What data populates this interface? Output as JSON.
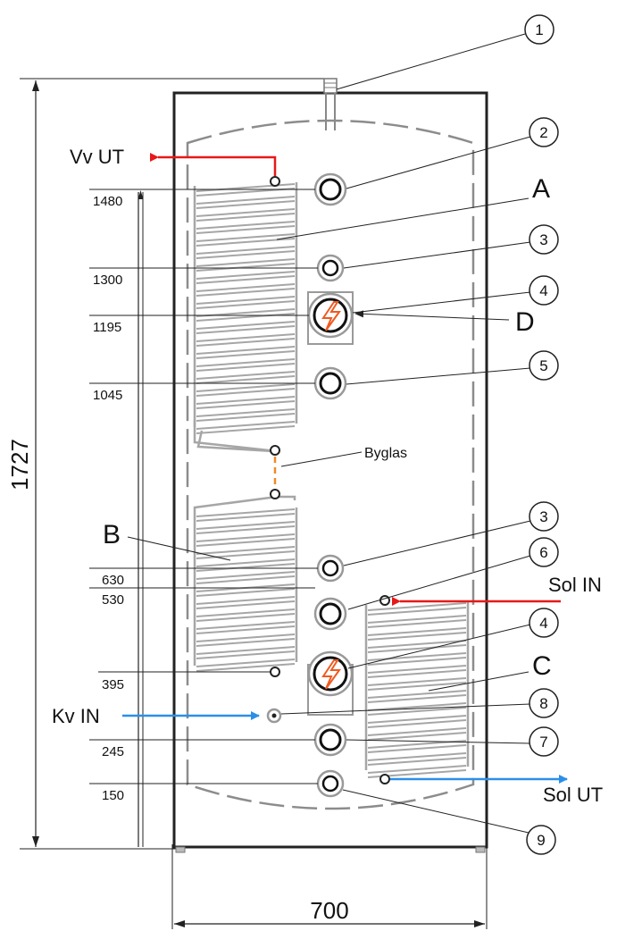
{
  "dimensions": {
    "height": "1727",
    "width": "700"
  },
  "height_marks": [
    "1480",
    "1300",
    "1195",
    "1045",
    "630",
    "530",
    "395",
    "245",
    "150"
  ],
  "callouts": [
    "1",
    "2",
    "3",
    "4",
    "5",
    "3",
    "6",
    "4",
    "8",
    "7",
    "9"
  ],
  "letters": {
    "a": "A",
    "b": "B",
    "c": "C",
    "d": "D"
  },
  "pipe_labels": {
    "hot_out": "Vv UT",
    "cold_in": "Kv IN",
    "solar_in": "Sol IN",
    "solar_out": "Sol UT"
  },
  "byglas": "Byglas",
  "colors": {
    "hot": "#e81818",
    "cold": "#2b8fe8",
    "jumper": "#f08a2a",
    "coil": "#a6a6a6",
    "outline": "#222222"
  }
}
